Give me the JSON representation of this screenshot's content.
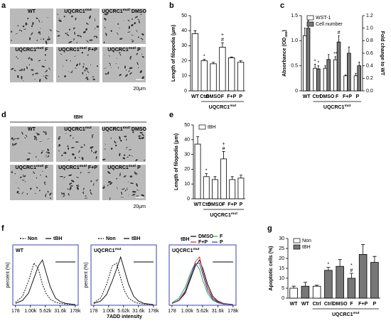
{
  "micrographs": [
    {
      "panel": "a",
      "scale_bar": "20μm",
      "images": [
        {
          "text": "WT"
        },
        {
          "text": "UQCRC1",
          "sup": "mut"
        },
        {
          "text": "UQCRC1",
          "sup": "mut/",
          "suffix": " DMSO"
        },
        {
          "text": "UQCRC1",
          "sup": "mut/",
          "suffix": " F"
        },
        {
          "text": "UQCRC1",
          "sup": "mut/",
          "suffix": " F+P"
        },
        {
          "text": "UQCRC1",
          "sup": "mut/",
          "suffix": " P"
        }
      ]
    },
    {
      "panel": "d",
      "condition": "tBH",
      "scale_bar": "20μm",
      "images": [
        {
          "text": "WT"
        },
        {
          "text": "UQCRC1",
          "sup": "mut"
        },
        {
          "text": "UQCRC1",
          "sup": "mut/",
          "suffix": " DMSO"
        },
        {
          "text": "UQCRC1",
          "sup": "mut/",
          "suffix": " F"
        },
        {
          "text": "UQCRC1",
          "sup": "mut/",
          "suffix": " F+P"
        },
        {
          "text": "UQCRC1",
          "sup": "mut/",
          "suffix": " P"
        }
      ]
    }
  ],
  "chart_data": [
    {
      "panel": "b",
      "type": "bar",
      "ylabel": "Length of filopodia (μm)",
      "categories": [
        "WT",
        "Ctrl",
        "DMSO",
        "F",
        "F+P",
        "P"
      ],
      "values": [
        38,
        20,
        18,
        29,
        22,
        19
      ],
      "errors": [
        2,
        1,
        1,
        3,
        0.5,
        1
      ],
      "annotations": [
        [],
        [
          "*"
        ],
        [],
        [
          "#",
          "+"
        ],
        [],
        []
      ],
      "color": "#ffffff",
      "ylim": [
        0,
        50
      ],
      "yticks": [
        0,
        10,
        20,
        30,
        40,
        50
      ],
      "group_label": {
        "text": "UQCRC1",
        "sup": "mut"
      }
    },
    {
      "panel": "c",
      "type": "bar",
      "ylabel": {
        "text": "Absorbance (OD",
        "sub": "450",
        "suffix": ")"
      },
      "y2label": "Fold change to WT",
      "categories": [
        "WT",
        "Ctrl",
        "DMSO",
        "F",
        "F+P",
        "P"
      ],
      "series": [
        {
          "name": "WST-1",
          "color": "#ffffff",
          "values": [
            1.1,
            0.45,
            0.45,
            0.62,
            0.3,
            0.3
          ],
          "errors": [
            0.15,
            0.08,
            0.05,
            0.06,
            0.02,
            0.05
          ],
          "annotations": [
            [],
            [
              "*"
            ],
            [],
            [
              "**"
            ],
            [],
            []
          ]
        },
        {
          "name": "Cell number",
          "color": "#777777",
          "axis": "y2",
          "values": [
            1.0,
            0.35,
            0.5,
            0.78,
            0.6,
            0.4
          ],
          "errors": [
            0.12,
            0.05,
            0.08,
            0.1,
            0.1,
            0.06
          ],
          "annotations": [
            [],
            [
              "*"
            ],
            [],
            [
              "#"
            ],
            [],
            []
          ]
        }
      ],
      "ylim": [
        0,
        1.5
      ],
      "yticks": [
        0,
        0.5,
        {
          "value": 1,
          "label": "1.0"
        },
        1.5
      ],
      "y2lim": [
        0,
        1.2
      ],
      "y2ticks": [
        {
          "value": 0,
          "label": "0.0"
        },
        0.2,
        0.4,
        0.6,
        0.8,
        {
          "value": 1,
          "label": "1.0"
        },
        1.2
      ],
      "group_label": {
        "text": "UQCRC1",
        "sup": "mut"
      }
    },
    {
      "panel": "e",
      "type": "bar",
      "ylabel": "Length of filopodia (μm)",
      "categories": [
        "WT",
        "Ctrl",
        "DMSO",
        "F",
        "F+P",
        "P"
      ],
      "series": [
        {
          "name": "tBH",
          "color": "#ffffff",
          "values": [
            37,
            15,
            13,
            27,
            13,
            14
          ],
          "errors": [
            5,
            2,
            2,
            5,
            2,
            2
          ],
          "annotations": [
            [],
            [
              "*"
            ],
            [],
            [
              "#",
              "+"
            ],
            [],
            []
          ]
        }
      ],
      "ylim": [
        0,
        50
      ],
      "yticks": [
        0,
        10,
        20,
        30,
        40,
        50
      ],
      "group_label": {
        "text": "UQCRC1",
        "sup": "mut"
      }
    },
    {
      "panel": "f",
      "type": "line",
      "title": {
        "text": "WT"
      },
      "ylabel": "percent (%)",
      "xlabel": "7ADD intensity",
      "xscale": "log",
      "x": [
        178,
        400,
        800,
        1500,
        2500,
        4000,
        6000,
        10000,
        18000,
        31600,
        60000,
        178000
      ],
      "series": [
        {
          "name": "Non",
          "color": "#000000",
          "dash": true,
          "values": [
            5,
            15,
            40,
            70,
            60,
            35,
            20,
            10,
            5,
            3,
            2,
            1
          ]
        },
        {
          "name": "tBH",
          "color": "#000000",
          "values": [
            3,
            8,
            20,
            45,
            65,
            75,
            55,
            30,
            12,
            6,
            3,
            1
          ]
        }
      ],
      "xlim": [
        130,
        250000
      ],
      "ylim": [
        0,
        100
      ],
      "xticks": [
        178,
        {
          "value": 1000,
          "label": "1.00k"
        },
        {
          "value": 5620,
          "label": "5.62k"
        },
        {
          "value": 31600,
          "label": "31.6k"
        },
        {
          "value": 178000,
          "label": "178k"
        }
      ]
    },
    {
      "type": "line",
      "title": {
        "text": "UQCRC1",
        "sup": "mut"
      },
      "ylabel": "percent (%)",
      "xscale": "log",
      "x": [
        178,
        400,
        800,
        1500,
        2500,
        4000,
        6000,
        10000,
        18000,
        31600,
        60000,
        178000
      ],
      "series": [
        {
          "name": "Non",
          "color": "#000000",
          "dash": true,
          "values": [
            4,
            12,
            35,
            65,
            70,
            45,
            25,
            12,
            6,
            3,
            2,
            1
          ]
        },
        {
          "name": "tBH",
          "color": "#000000",
          "values": [
            3,
            7,
            18,
            40,
            60,
            80,
            60,
            35,
            15,
            7,
            3,
            1
          ]
        }
      ],
      "xlim": [
        130,
        250000
      ],
      "ylim": [
        0,
        100
      ],
      "xticks": [
        178,
        {
          "value": 1000,
          "label": "1.00k"
        },
        {
          "value": 5620,
          "label": "5.62k"
        },
        {
          "value": 31600,
          "label": "31.6k"
        },
        {
          "value": 178000,
          "label": "178k"
        }
      ]
    },
    {
      "type": "line",
      "title": {
        "text": "UQCRC1",
        "sup": "mut"
      },
      "legend_title": "tBH",
      "xscale": "log",
      "x": [
        178,
        400,
        800,
        1500,
        2500,
        4000,
        6000,
        10000,
        18000,
        31600,
        60000,
        178000
      ],
      "series": [
        {
          "name": "DMSO",
          "color": "#000000",
          "values": [
            3,
            8,
            20,
            45,
            65,
            75,
            60,
            35,
            15,
            7,
            3,
            1
          ]
        },
        {
          "name": "F",
          "color": "#22aa22",
          "values": [
            4,
            12,
            30,
            55,
            70,
            60,
            40,
            20,
            8,
            4,
            2,
            1
          ]
        },
        {
          "name": "F+P",
          "color": "#dd2222",
          "values": [
            3,
            8,
            22,
            48,
            72,
            80,
            55,
            30,
            12,
            6,
            3,
            1
          ]
        },
        {
          "name": "P",
          "color": "#2233cc",
          "values": [
            3,
            9,
            24,
            50,
            68,
            70,
            50,
            25,
            10,
            5,
            2,
            1
          ]
        }
      ],
      "xlim": [
        130,
        250000
      ],
      "ylim": [
        0,
        100
      ],
      "xticks": [
        178,
        {
          "value": 1000,
          "label": "1.00k"
        },
        {
          "value": 5620,
          "label": "5.62k"
        },
        {
          "value": 31600,
          "label": "31.6k"
        },
        {
          "value": 178000,
          "label": "178k"
        }
      ]
    },
    {
      "panel": "g",
      "type": "bar",
      "ylabel": "Apoptotic cells (%)",
      "categories": [
        "WT",
        "WT",
        "Ctrl",
        "Ctrl",
        "DMSO",
        "F",
        "F+P",
        "P"
      ],
      "series": [
        {
          "name": "Non",
          "color": "#ffffff",
          "values": [
            5,
            null,
            6,
            null,
            null,
            null,
            null,
            null
          ],
          "errors": [
            1,
            null,
            0.5,
            null,
            null,
            null,
            null,
            null
          ]
        },
        {
          "name": "tBH",
          "color": "#777777",
          "values": [
            null,
            6,
            null,
            14,
            16,
            10,
            22,
            18
          ],
          "errors": [
            null,
            2,
            null,
            1.5,
            3.5,
            2.5,
            5,
            3
          ],
          "annotations": [
            [],
            [],
            [],
            [
              "*"
            ],
            [],
            [
              "#",
              "*"
            ],
            [],
            []
          ]
        }
      ],
      "ylim": [
        0,
        30
      ],
      "yticks": [
        0,
        5,
        10,
        15,
        20,
        25,
        30
      ],
      "group_label": {
        "text": "UQCRC1",
        "sup": "mut"
      }
    }
  ]
}
